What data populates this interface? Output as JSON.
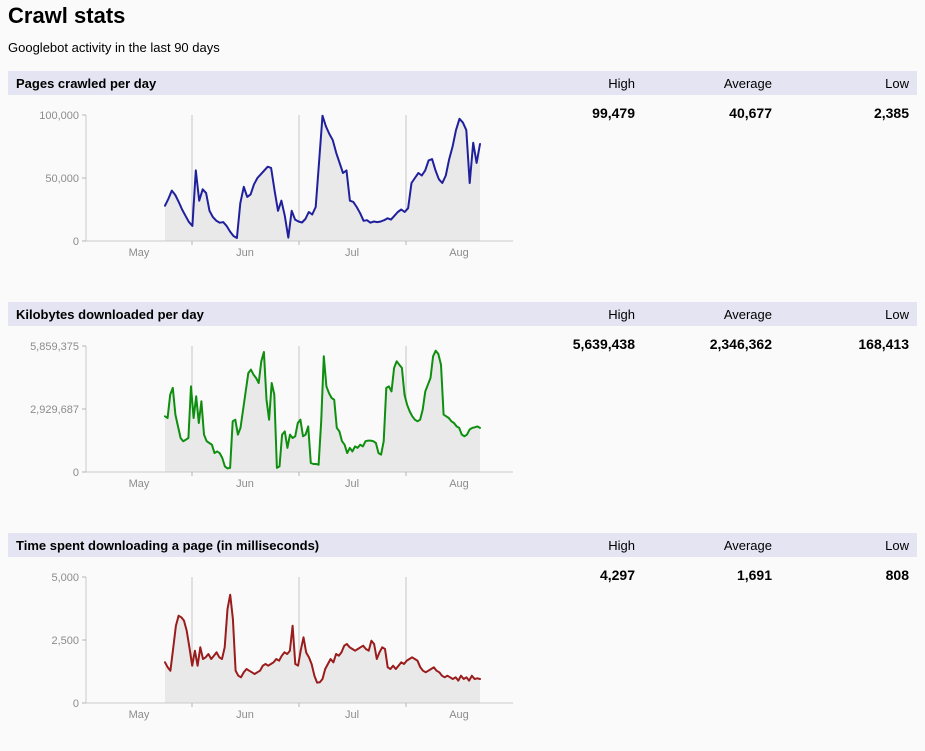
{
  "page": {
    "title": "Crawl stats",
    "subtitle": "Googlebot activity in the last 90 days"
  },
  "columns": [
    "High",
    "Average",
    "Low"
  ],
  "colors": {
    "header_bg": "#e4e4f3",
    "axis": "#c9c9c9",
    "grid": "#c5c5c5",
    "tick": "#b5b5b5",
    "fill": "#e9e9e9",
    "axis_label": "#8c8c8c",
    "pages_line": "#20209d",
    "kilobytes_line": "#0f8f0f",
    "time_line": "#9a1c1c"
  },
  "sections": [
    {
      "title": "Pages crawled per day",
      "high": "99,479",
      "average": "40,677",
      "low": "2,385"
    },
    {
      "title": "Kilobytes downloaded per day",
      "high": "5,639,438",
      "average": "2,346,362",
      "low": "168,413"
    },
    {
      "title": "Time spent downloading a page (in milliseconds)",
      "high": "4,297",
      "average": "1,691",
      "low": "808"
    }
  ],
  "chart_data": [
    {
      "type": "area",
      "title": "Pages crawled per day",
      "x_ticks": [
        "May",
        "Jun",
        "Jul",
        "Aug"
      ],
      "y_ticks": [
        "0",
        "50,000",
        "100,000"
      ],
      "ymax": 100000,
      "color": "#20209d",
      "high": 99479,
      "average": 40677,
      "low": 2385,
      "legend": "none",
      "grid": "vertical-only",
      "values": [
        28000,
        33500,
        40000,
        36500,
        31000,
        25000,
        20000,
        15000,
        12000,
        56000,
        32000,
        41000,
        38000,
        24000,
        19000,
        16000,
        14500,
        15000,
        12000,
        7500,
        4000,
        2385,
        30000,
        43000,
        35000,
        37000,
        45000,
        50000,
        53000,
        56000,
        59000,
        58000,
        40000,
        24000,
        32000,
        20000,
        2700,
        24000,
        17000,
        15500,
        14700,
        17500,
        23000,
        21000,
        27000,
        63000,
        99479,
        91000,
        85000,
        80000,
        70000,
        62000,
        54000,
        56000,
        32000,
        31000,
        27000,
        22000,
        16000,
        16500,
        14500,
        15500,
        15000,
        15500,
        16500,
        18000,
        17000,
        20000,
        23000,
        25000,
        23000,
        26000,
        46000,
        50000,
        54000,
        52000,
        56000,
        64000,
        65000,
        56000,
        49000,
        46000,
        52000,
        65000,
        75000,
        88000,
        97000,
        94000,
        88000,
        46000,
        78000,
        62000,
        77000
      ]
    },
    {
      "type": "area",
      "title": "Kilobytes downloaded per day",
      "x_ticks": [
        "May",
        "Jun",
        "Jul",
        "Aug"
      ],
      "y_ticks": [
        "0",
        "2,929,687",
        "5,859,375"
      ],
      "ymax": 5859375,
      "color": "#0f8f0f",
      "high": 5639438,
      "average": 2346362,
      "low": 168413,
      "legend": "none",
      "grid": "vertical-only",
      "values": [
        2590000,
        2510000,
        3600000,
        3910000,
        2670000,
        2120000,
        1580000,
        1430000,
        1500000,
        1580000,
        3980000,
        2510000,
        3520000,
        2280000,
        3290000,
        1740000,
        1430000,
        1350000,
        1270000,
        880000,
        960000,
        880000,
        650000,
        260000,
        168413,
        190000,
        2360000,
        2430000,
        1740000,
        2050000,
        2900000,
        3750000,
        4600000,
        4760000,
        4530000,
        4370000,
        4140000,
        5150000,
        5580000,
        3360000,
        2430000,
        4140000,
        3600000,
        190000,
        260000,
        1740000,
        1890000,
        1120000,
        1740000,
        1580000,
        1660000,
        2280000,
        2430000,
        1660000,
        1740000,
        2120000,
        420000,
        370000,
        370000,
        340000,
        2360000,
        5380000,
        3980000,
        3670000,
        3440000,
        3360000,
        2050000,
        1890000,
        1430000,
        1270000,
        880000,
        1120000,
        960000,
        1190000,
        1120000,
        1270000,
        1190000,
        1430000,
        1460000,
        1460000,
        1430000,
        1350000,
        880000,
        810000,
        1430000,
        3910000,
        3980000,
        3750000,
        4840000,
        5150000,
        4990000,
        4840000,
        3600000,
        3130000,
        2820000,
        2590000,
        2430000,
        2360000,
        2430000,
        2900000,
        3750000,
        4060000,
        4370000,
        5380000,
        5639438,
        5490000,
        4990000,
        2670000,
        2590000,
        2510000,
        2360000,
        2280000,
        2120000,
        2050000,
        1740000,
        1660000,
        1740000,
        1970000,
        2050000,
        2080000,
        2120000,
        2050000
      ]
    },
    {
      "type": "area",
      "title": "Time spent downloading a page (in milliseconds)",
      "x_ticks": [
        "May",
        "Jun",
        "Jul",
        "Aug"
      ],
      "y_ticks": [
        "0",
        "2,500",
        "5,000"
      ],
      "ymax": 5000,
      "color": "#9a1c1c",
      "high": 4297,
      "average": 1691,
      "low": 808,
      "legend": "none",
      "grid": "vertical-only",
      "values": [
        1614,
        1416,
        1283,
        2143,
        3069,
        3466,
        3400,
        3268,
        2871,
        2209,
        1482,
        2077,
        1482,
        2209,
        1746,
        1812,
        1944,
        1746,
        1878,
        2011,
        1812,
        1746,
        2209,
        3731,
        4297,
        3334,
        1283,
        1085,
        1019,
        1217,
        1349,
        1283,
        1217,
        1151,
        1217,
        1283,
        1482,
        1548,
        1482,
        1548,
        1614,
        1746,
        1680,
        1878,
        2011,
        1944,
        2077,
        3069,
        1549,
        1483,
        2100,
        2606,
        2000,
        1812,
        1548,
        1085,
        808,
        820,
        953,
        1349,
        1548,
        1746,
        1614,
        1944,
        1878,
        2011,
        2275,
        2341,
        2209,
        2143,
        2077,
        2143,
        2209,
        2275,
        2143,
        2077,
        2474,
        2341,
        1746,
        2011,
        2209,
        2143,
        1416,
        1349,
        1482,
        1349,
        1482,
        1614,
        1548,
        1680,
        1746,
        1812,
        1746,
        1680,
        1416,
        1283,
        1217,
        1283,
        1349,
        1416,
        1283,
        1217,
        1085,
        1019,
        1085,
        1019,
        953,
        1019,
        887,
        1085,
        953,
        1019,
        887,
        1085,
        953,
        980,
        953
      ]
    }
  ]
}
